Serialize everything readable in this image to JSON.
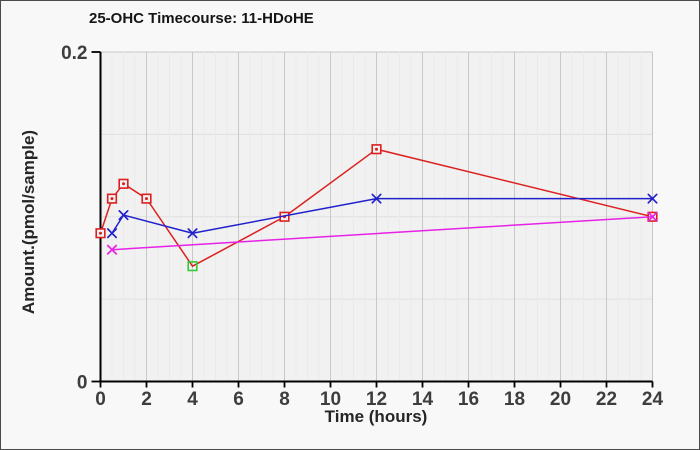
{
  "chart_data": {
    "type": "line",
    "title": "25-OHC Timecourse: 11-HDoHE",
    "xlabel": "Time (hours)",
    "ylabel": "Amount.(pmol/sample)",
    "xlim": [
      0,
      24
    ],
    "ylim": [
      0,
      0.2
    ],
    "x_ticks": [
      {
        "value": 0,
        "label": "0"
      },
      {
        "value": 2,
        "label": "2"
      },
      {
        "value": 4,
        "label": "4"
      },
      {
        "value": 6,
        "label": "6"
      },
      {
        "value": 8,
        "label": "8"
      },
      {
        "value": 10,
        "label": "10"
      },
      {
        "value": 12,
        "label": "12"
      },
      {
        "value": 14,
        "label": "14"
      },
      {
        "value": 16,
        "label": "16"
      },
      {
        "value": 18,
        "label": "18"
      },
      {
        "value": 20,
        "label": "20"
      },
      {
        "value": 22,
        "label": "22"
      },
      {
        "value": 24,
        "label": "24"
      }
    ],
    "y_ticks": [
      {
        "value": 0,
        "label": "0"
      },
      {
        "value": 0.2,
        "label": "0.2"
      }
    ],
    "x_minor_step": 0.5,
    "y_grid_values": [
      0.05,
      0.1,
      0.15,
      0.2
    ],
    "grid": true,
    "legend": false,
    "series": [
      {
        "name": "red-squares",
        "color": "#dc2020",
        "marker": "square",
        "line": true,
        "no_marker_at": [
          4
        ],
        "points": [
          [
            0,
            0.09
          ],
          [
            0.5,
            0.111
          ],
          [
            1,
            0.12
          ],
          [
            2,
            0.111
          ],
          [
            4,
            0.07
          ],
          [
            8,
            0.1
          ],
          [
            12,
            0.141
          ],
          [
            24,
            0.1
          ]
        ]
      },
      {
        "name": "green-flag-point",
        "color": "#33cc33",
        "marker": "square",
        "open": true,
        "line": false,
        "points": [
          [
            4,
            0.07
          ]
        ]
      },
      {
        "name": "blue-x",
        "color": "#2121cc",
        "marker": "x",
        "line": true,
        "points": [
          [
            0.5,
            0.09
          ],
          [
            1,
            0.101
          ],
          [
            4,
            0.09
          ],
          [
            12,
            0.111
          ],
          [
            24,
            0.111
          ]
        ]
      },
      {
        "name": "magenta-x",
        "color": "#e722e7",
        "marker": "x",
        "line": true,
        "points": [
          [
            0.5,
            0.08
          ],
          [
            24,
            0.1
          ]
        ]
      }
    ],
    "style": {
      "plot_bg": "#f1f1f1",
      "outer_bg": "#f8f8f8",
      "grid_major": "#c8c8c8",
      "grid_minor": "#eaeaea",
      "grid_horizontal": "#e0e0e0",
      "axis_color": "#000000",
      "tick_label_color": "#3d3d3d"
    }
  }
}
